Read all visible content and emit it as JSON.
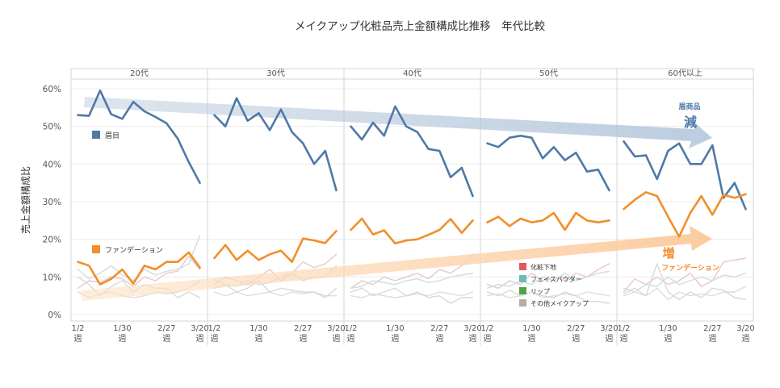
{
  "chart_data": {
    "type": "line",
    "title": "メイクアップ化粧品売上金額構成比推移　年代比較",
    "ylabel": "売上金額構成比",
    "ylim": [
      0,
      60
    ],
    "y_ticks": [
      0,
      10,
      20,
      30,
      40,
      50,
      60
    ],
    "y_tick_labels": [
      "0%",
      "10%",
      "20%",
      "30%",
      "40%",
      "50%",
      "60%"
    ],
    "x_tick_labels": [
      {
        "date": "1/2",
        "unit": "週",
        "week_index": 0
      },
      {
        "date": "1/30",
        "unit": "週",
        "week_index": 4
      },
      {
        "date": "2/27",
        "unit": "週",
        "week_index": 8
      },
      {
        "date": "3/20",
        "unit": "週",
        "week_index": 11
      }
    ],
    "panels": [
      {
        "name": "20代",
        "series": [
          {
            "name": "眉目",
            "values": [
              53,
              52.8,
              59.5,
              53.2,
              52,
              56.5,
              54,
              52.5,
              50.8,
              46.8,
              40.5,
              35
            ]
          },
          {
            "name": "ファンデーション",
            "values": [
              14,
              13,
              8,
              9.5,
              12,
              8.2,
              13,
              12,
              14,
              14,
              16.5,
              12.5
            ]
          },
          {
            "name": "化粧下地",
            "values": [
              7,
              9,
              8.5,
              10,
              9.5,
              7.5,
              10,
              9,
              11,
              11.5,
              15.5,
              12
            ]
          },
          {
            "name": "フェイスパウダー",
            "values": [
              12,
              9.5,
              11,
              13,
              10.5,
              9,
              12,
              10.5,
              11.5,
              12,
              13.5,
              21
            ]
          },
          {
            "name": "リップ",
            "values": [
              6,
              4.5,
              5.5,
              6,
              5,
              4.5,
              5,
              6,
              5.5,
              6,
              7,
              9
            ]
          },
          {
            "name": "その他メイクアップ",
            "values": [
              10,
              8,
              5,
              7.5,
              9,
              6,
              8,
              7,
              7,
              4.5,
              6,
              4.5
            ]
          }
        ]
      },
      {
        "name": "30代",
        "series": [
          {
            "name": "眉目",
            "values": [
              53,
              50,
              57.5,
              51.5,
              53.5,
              49,
              54.5,
              48.5,
              45.5,
              40,
              43.5,
              33
            ]
          },
          {
            "name": "ファンデーション",
            "values": [
              15,
              18.5,
              14.5,
              17,
              14.5,
              16,
              17,
              14,
              20.2,
              19.7,
              19,
              22.2
            ]
          },
          {
            "name": "化粧下地",
            "values": [
              8,
              10,
              9,
              8,
              10,
              12,
              9,
              11,
              14,
              12.5,
              13.5,
              16
            ]
          },
          {
            "name": "フェイスパウダー",
            "values": [
              9.5,
              8,
              7.5,
              9,
              8,
              8.5,
              10,
              11,
              9,
              10,
              10,
              13
            ]
          },
          {
            "name": "リップ",
            "values": [
              6,
              5,
              6,
              5,
              5.5,
              6,
              5,
              6,
              5.5,
              6,
              5,
              5
            ]
          },
          {
            "name": "その他メイクアップ",
            "values": [
              7,
              8,
              6,
              7,
              9,
              6,
              7,
              6.5,
              6,
              6,
              4.5,
              7
            ]
          }
        ]
      },
      {
        "name": "40代",
        "series": [
          {
            "name": "眉目",
            "values": [
              50,
              46.5,
              51,
              47.5,
              55.3,
              50,
              48.5,
              44,
              43.5,
              36.5,
              39,
              31.5
            ]
          },
          {
            "name": "ファンデーション",
            "values": [
              22.5,
              25.5,
              21.3,
              22.4,
              18.9,
              19.7,
              20,
              21.2,
              22.5,
              25.4,
              21.7,
              25
            ]
          },
          {
            "name": "化粧下地",
            "values": [
              7,
              9,
              8,
              10,
              9,
              10,
              11,
              9.5,
              12,
              11,
              13,
              16
            ]
          },
          {
            "name": "フェイスパウダー",
            "values": [
              7,
              7.5,
              9,
              8.5,
              8,
              9,
              9.5,
              8.5,
              9,
              10,
              10.5,
              11
            ]
          },
          {
            "name": "リップ",
            "values": [
              5,
              4.5,
              5.5,
              5,
              4.5,
              5,
              5.5,
              5,
              6,
              5.5,
              5,
              6
            ]
          },
          {
            "name": "その他メイクアップ",
            "values": [
              6,
              7,
              5,
              6,
              7,
              5,
              6,
              4.5,
              5,
              3,
              4.5,
              4.5
            ]
          }
        ]
      },
      {
        "name": "50代",
        "series": [
          {
            "name": "眉目",
            "values": [
              45.5,
              44.5,
              47,
              47.5,
              47,
              41.5,
              44.5,
              41,
              43,
              38,
              38.5,
              33
            ]
          },
          {
            "name": "ファンデーション",
            "values": [
              24.5,
              26,
              23.5,
              25.5,
              24.5,
              25,
              27,
              22.5,
              27,
              25,
              24.5,
              25
            ]
          },
          {
            "name": "化粧下地",
            "values": [
              8,
              7,
              9,
              8,
              11,
              9,
              10,
              9,
              11,
              10,
              12,
              13.5
            ]
          },
          {
            "name": "フェイスパウダー",
            "values": [
              7,
              8,
              7.5,
              9,
              8,
              10,
              9,
              11,
              9,
              10,
              11,
              11.5
            ]
          },
          {
            "name": "リップ",
            "values": [
              5,
              5.5,
              4.5,
              5,
              6,
              4.5,
              5,
              5.5,
              5,
              6,
              5.5,
              5
            ]
          },
          {
            "name": "その他メイクアップ",
            "values": [
              6,
              5,
              6.5,
              5,
              6,
              5,
              4.5,
              6,
              5,
              3.5,
              3.5,
              3
            ]
          }
        ]
      },
      {
        "name": "60代以上",
        "series": [
          {
            "name": "眉目",
            "values": [
              46,
              42,
              42.3,
              36,
              43.5,
              45.5,
              40,
              40,
              45,
              31,
              35,
              28
            ]
          },
          {
            "name": "ファンデーション",
            "values": [
              28,
              30.5,
              32.5,
              31.5,
              26,
              20.7,
              27,
              31.5,
              26.5,
              31.8,
              31,
              32
            ]
          },
          {
            "name": "化粧下地",
            "values": [
              6,
              9.5,
              8,
              10,
              8,
              9,
              11,
              7.5,
              9,
              14,
              14.5,
              15
            ]
          },
          {
            "name": "フェイスパウダー",
            "values": [
              7,
              6,
              8,
              7.5,
              10,
              8,
              9,
              10,
              9,
              10.5,
              10,
              11
            ]
          },
          {
            "name": "リップ",
            "values": [
              5,
              6,
              5,
              7,
              4,
              6,
              5,
              5.5,
              5,
              6,
              6,
              7.5
            ]
          },
          {
            "name": "その他メイクアップ",
            "values": [
              5.5,
              7,
              5,
              13.5,
              6,
              4,
              6,
              4.5,
              7,
              6.5,
              4.5,
              4
            ]
          }
        ]
      }
    ],
    "legend": [
      {
        "name": "化粧下地",
        "color": "#e05a5a"
      },
      {
        "name": "フェイスパウダー",
        "color": "#6bbcb4"
      },
      {
        "name": "リップ",
        "color": "#4fa34a"
      },
      {
        "name": "その他メイクアップ",
        "color": "#b9aba3"
      }
    ],
    "series_colors": {
      "眉目": "#4e79a7",
      "ファンデーション": "#f28e2b",
      "化粧下地": "#e9c6cc",
      "フェイスパウダー": "#cfdfd8",
      "リップ": "#d9e2d0",
      "その他メイクアップ": "#d8d8d8"
    },
    "annotations": {
      "eyebrow_label": "眉目",
      "foundation_label": "ファンデーション",
      "decrease_category": "眉商品",
      "decrease_word": "減",
      "increase_word": "増",
      "increase_category": "ファンデーション",
      "decrease_color": "#4e79a7",
      "increase_color": "#f28e2b"
    }
  }
}
